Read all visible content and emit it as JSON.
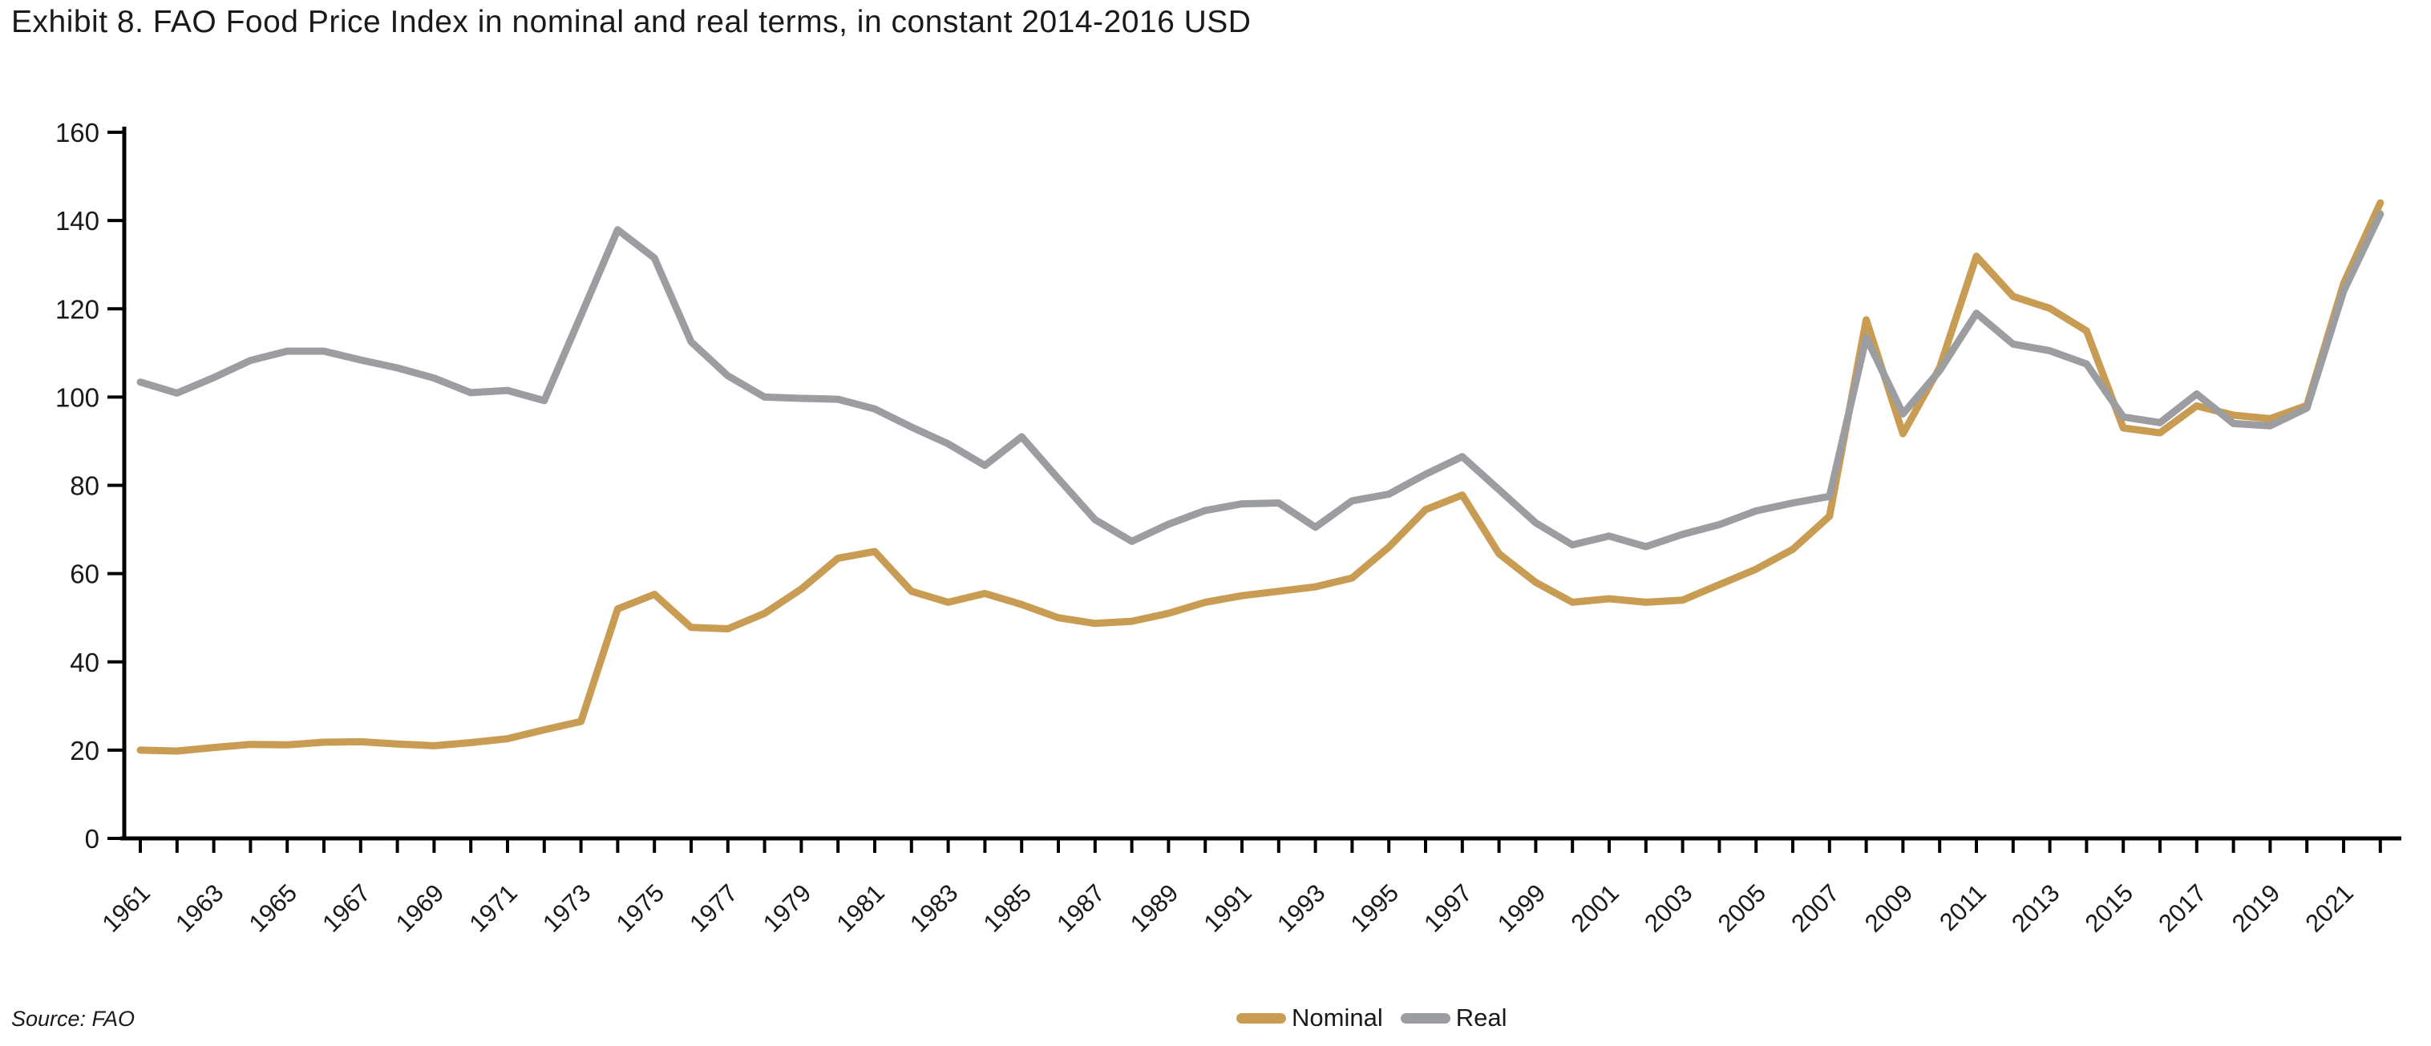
{
  "title": "Exhibit 8. FAO Food Price Index in nominal and real terms, in constant 2014-2016 USD",
  "source_note": "Source: FAO",
  "colors": {
    "nominal": "#C89C52",
    "real": "#9C9DA0",
    "axis": "#000000",
    "text": "#1A1A1A"
  },
  "legend": {
    "items": [
      {
        "label": "Nominal",
        "color_key": "nominal"
      },
      {
        "label": "Real",
        "color_key": "real"
      }
    ]
  },
  "chart_data": {
    "type": "line",
    "title": "Exhibit 8. FAO Food Price Index in nominal and real terms, in constant 2014-2016 USD",
    "xlabel": "",
    "ylabel": "",
    "grid": false,
    "legend_position": "bottom-center",
    "ylim": [
      0,
      160
    ],
    "y_ticks": [
      0,
      20,
      40,
      60,
      80,
      100,
      120,
      140,
      160
    ],
    "x_ticks_every_year": true,
    "x_labeled_years": [
      1961,
      1963,
      1965,
      1967,
      1969,
      1971,
      1973,
      1975,
      1977,
      1979,
      1981,
      1983,
      1985,
      1987,
      1989,
      1991,
      1993,
      1995,
      1997,
      1999,
      2001,
      2003,
      2005,
      2007,
      2009,
      2011,
      2013,
      2015,
      2017,
      2019,
      2021
    ],
    "x": [
      1961,
      1962,
      1963,
      1964,
      1965,
      1966,
      1967,
      1968,
      1969,
      1970,
      1971,
      1972,
      1973,
      1974,
      1975,
      1976,
      1977,
      1978,
      1979,
      1980,
      1981,
      1982,
      1983,
      1984,
      1985,
      1986,
      1987,
      1988,
      1989,
      1990,
      1991,
      1992,
      1993,
      1994,
      1995,
      1996,
      1997,
      1998,
      1999,
      2000,
      2001,
      2002,
      2003,
      2004,
      2005,
      2006,
      2007,
      2008,
      2009,
      2010,
      2011,
      2012,
      2013,
      2014,
      2015,
      2016,
      2017,
      2018,
      2019,
      2020,
      2021,
      2022
    ],
    "series": [
      {
        "name": "Nominal",
        "color_key": "nominal",
        "values": [
          20.0,
          19.8,
          20.6,
          21.3,
          21.2,
          21.8,
          21.9,
          21.4,
          21.0,
          21.7,
          22.6,
          24.6,
          26.5,
          52.0,
          55.3,
          47.8,
          47.5,
          51.0,
          56.5,
          63.5,
          65.0,
          56.0,
          53.5,
          55.5,
          53.0,
          50.0,
          48.7,
          49.2,
          51.0,
          53.5,
          55.0,
          56.0,
          57.0,
          59.0,
          66.0,
          74.5,
          77.8,
          64.5,
          58.0,
          53.5,
          54.3,
          53.5,
          54.0,
          57.5,
          61.0,
          65.5,
          73.0,
          117.5,
          91.7,
          106.7,
          131.9,
          122.8,
          120.1,
          115.0,
          93.0,
          91.9,
          98.0,
          95.9,
          95.1,
          98.1,
          125.7,
          144.0
        ]
      },
      {
        "name": "Real",
        "color_key": "real",
        "values": [
          103.4,
          100.9,
          104.4,
          108.3,
          110.4,
          110.4,
          108.4,
          106.6,
          104.3,
          101.0,
          101.5,
          99.2,
          118.5,
          137.9,
          131.5,
          112.5,
          104.8,
          100.0,
          99.7,
          99.5,
          97.3,
          93.2,
          89.4,
          84.5,
          91.0,
          81.5,
          72.2,
          67.3,
          71.2,
          74.3,
          75.8,
          76.0,
          70.5,
          76.5,
          78.0,
          82.5,
          86.5,
          79.0,
          71.5,
          66.5,
          68.5,
          66.1,
          68.9,
          71.1,
          74.2,
          76.0,
          77.5,
          113.5,
          96.2,
          106.0,
          119.0,
          112.0,
          110.5,
          107.5,
          95.5,
          94.2,
          100.7,
          94.0,
          93.5,
          97.5,
          124.0,
          141.5
        ]
      }
    ]
  }
}
